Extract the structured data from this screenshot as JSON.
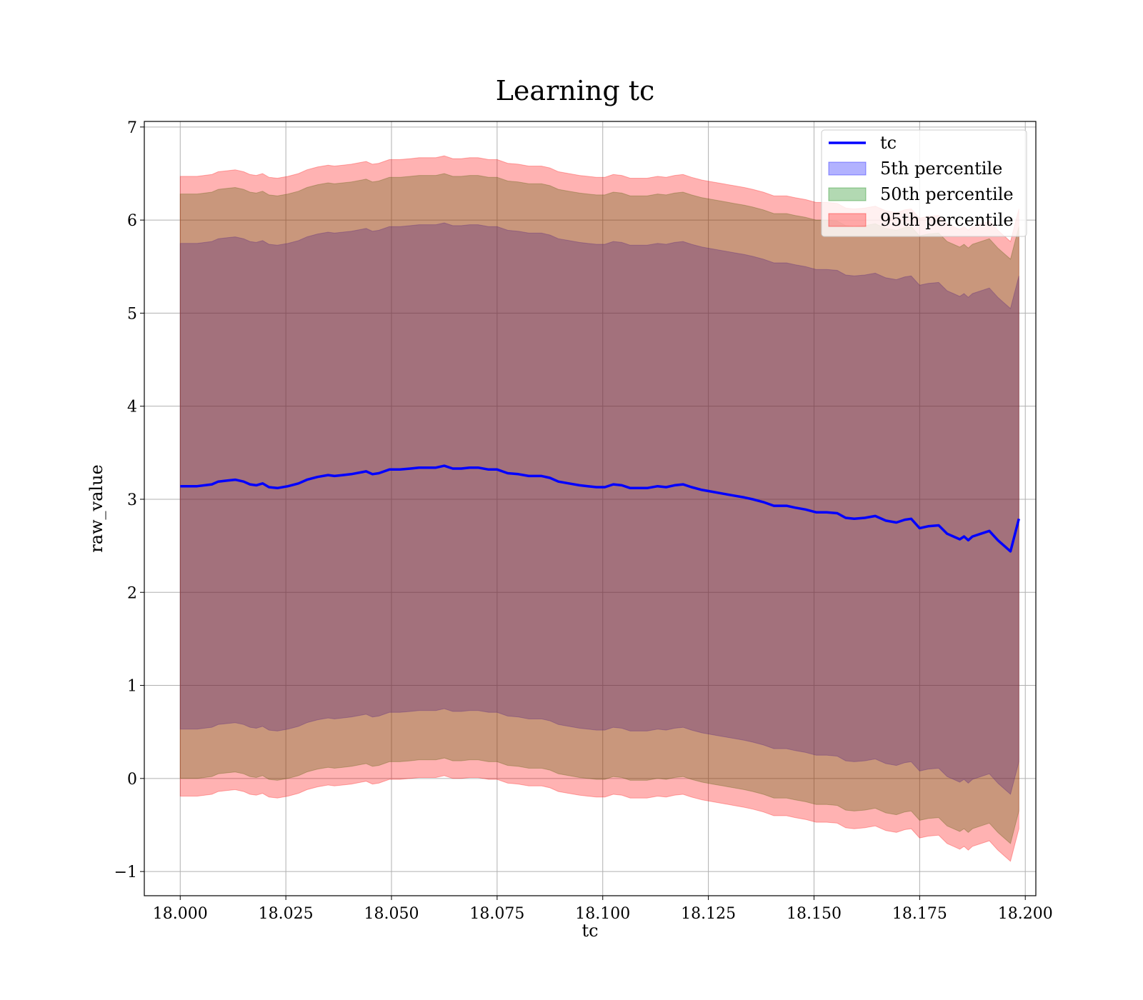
{
  "chart_data": {
    "type": "area",
    "title": "Learning tc",
    "xlabel": "tc",
    "ylabel": "raw_value",
    "xlim": [
      17.9915,
      18.2025
    ],
    "ylim": [
      -1.26,
      7.06
    ],
    "xticks": [
      18.0,
      18.025,
      18.05,
      18.075,
      18.1,
      18.125,
      18.15,
      18.175,
      18.2
    ],
    "xtick_labels": [
      "18.000",
      "18.025",
      "18.050",
      "18.075",
      "18.100",
      "18.125",
      "18.150",
      "18.175",
      "18.200"
    ],
    "yticks": [
      -1,
      0,
      1,
      2,
      3,
      4,
      5,
      6,
      7
    ],
    "ytick_labels": [
      "−1",
      "0",
      "1",
      "2",
      "3",
      "4",
      "5",
      "6",
      "7"
    ],
    "grid": true,
    "legend_position": "top-right",
    "x": [
      18.0,
      18.004,
      18.0075,
      18.009,
      18.011,
      18.013,
      18.015,
      18.0165,
      18.018,
      18.0195,
      18.021,
      18.023,
      18.0255,
      18.028,
      18.03,
      18.0325,
      18.035,
      18.0365,
      18.0385,
      18.0405,
      18.044,
      18.0455,
      18.047,
      18.0495,
      18.052,
      18.0545,
      18.0565,
      18.0585,
      18.0605,
      18.0625,
      18.0645,
      18.0665,
      18.0685,
      18.0705,
      18.073,
      18.075,
      18.0775,
      18.08,
      18.0825,
      18.0855,
      18.0875,
      18.0895,
      18.092,
      18.0945,
      18.0965,
      18.0985,
      18.1005,
      18.1025,
      18.1045,
      18.1065,
      18.1085,
      18.1105,
      18.113,
      18.115,
      18.117,
      18.119,
      18.121,
      18.1235,
      18.126,
      18.1285,
      18.131,
      18.1335,
      18.1355,
      18.138,
      18.1405,
      18.1435,
      18.1455,
      18.148,
      18.1505,
      18.153,
      18.1555,
      18.1575,
      18.1595,
      18.162,
      18.1645,
      18.167,
      18.1695,
      18.1715,
      18.173,
      18.175,
      18.177,
      18.1795,
      18.1815,
      18.183,
      18.1845,
      18.1855,
      18.1865,
      18.1875,
      18.1895,
      18.1915,
      18.1935,
      18.195,
      18.1965,
      18.1985
    ],
    "series": [
      {
        "name": "tc",
        "color": "#0000ff",
        "values": [
          3.14,
          3.14,
          3.16,
          3.19,
          3.2,
          3.21,
          3.19,
          3.16,
          3.15,
          3.17,
          3.13,
          3.12,
          3.14,
          3.17,
          3.21,
          3.24,
          3.26,
          3.25,
          3.26,
          3.27,
          3.3,
          3.27,
          3.28,
          3.32,
          3.32,
          3.33,
          3.34,
          3.34,
          3.34,
          3.36,
          3.33,
          3.33,
          3.34,
          3.34,
          3.32,
          3.32,
          3.28,
          3.27,
          3.25,
          3.25,
          3.23,
          3.19,
          3.17,
          3.15,
          3.14,
          3.13,
          3.13,
          3.16,
          3.15,
          3.12,
          3.12,
          3.12,
          3.14,
          3.13,
          3.15,
          3.16,
          3.13,
          3.1,
          3.08,
          3.06,
          3.04,
          3.02,
          3.0,
          2.97,
          2.93,
          2.93,
          2.91,
          2.89,
          2.86,
          2.86,
          2.85,
          2.8,
          2.79,
          2.8,
          2.82,
          2.77,
          2.75,
          2.78,
          2.79,
          2.69,
          2.71,
          2.72,
          2.63,
          2.6,
          2.57,
          2.6,
          2.56,
          2.6,
          2.63,
          2.66,
          2.56,
          2.5,
          2.44,
          2.79
        ]
      }
    ],
    "bands": [
      {
        "name": "5th percentile",
        "color": "#0000ff",
        "opacity": 0.3,
        "lower_offset": -2.61,
        "upper_offset": 2.61
      },
      {
        "name": "50th percentile",
        "color": "#008000",
        "opacity": 0.3,
        "lower_offset": -3.14,
        "upper_offset": 3.14
      },
      {
        "name": "95th percentile",
        "color": "#ff0000",
        "opacity": 0.3,
        "lower_offset": -3.33,
        "upper_offset": 3.33
      }
    ],
    "legend": [
      "tc",
      "5th percentile",
      "50th percentile",
      "95th percentile"
    ]
  }
}
